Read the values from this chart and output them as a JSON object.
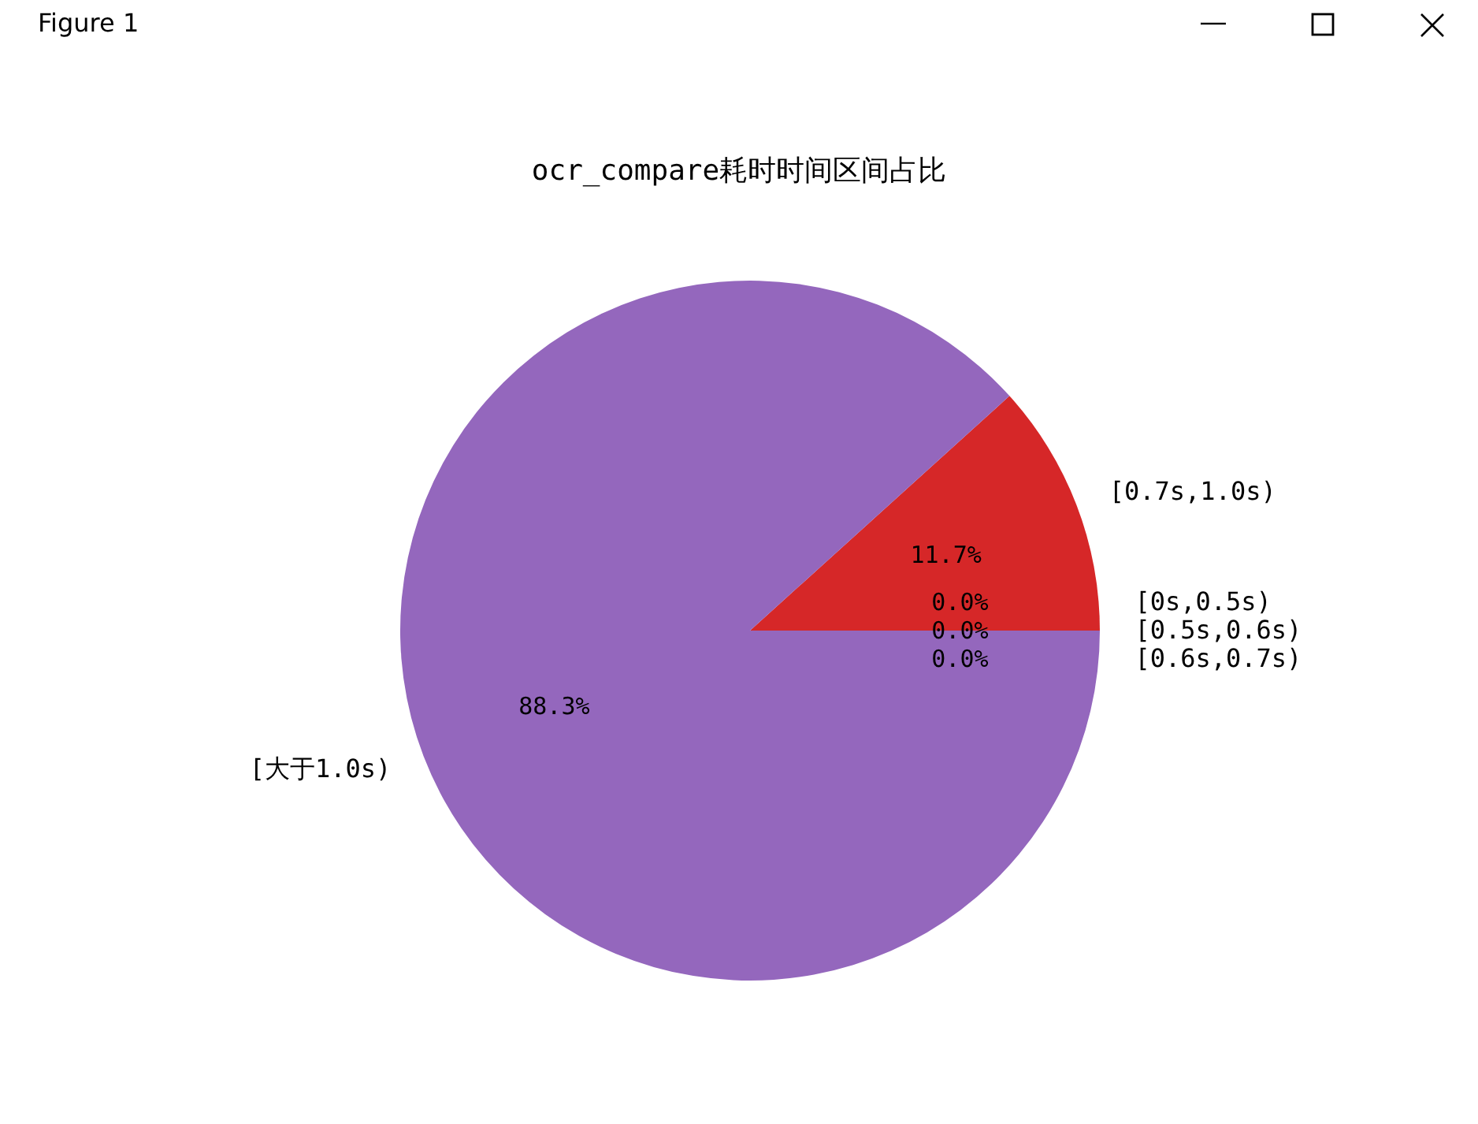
{
  "chart_data": {
    "type": "pie",
    "title": "ocr_compare耗时时间区间占比",
    "categories": [
      "[0s,0.5s)",
      "[0.5s,0.6s)",
      "[0.6s,0.7s)",
      "[0.7s,1.0s)",
      "[大于1.0s)"
    ],
    "values": [
      0,
      0,
      0,
      11.7,
      88.3
    ],
    "colors": [
      "#1f77b4",
      "#ff7f0e",
      "#2ca02c",
      "#d62728",
      "#9467bd"
    ],
    "value_labels": [
      "0.0%",
      "0.0%",
      "0.0%",
      "11.7%",
      "88.3%"
    ],
    "annotations": [
      "Figure 1"
    ],
    "legend": false
  }
}
